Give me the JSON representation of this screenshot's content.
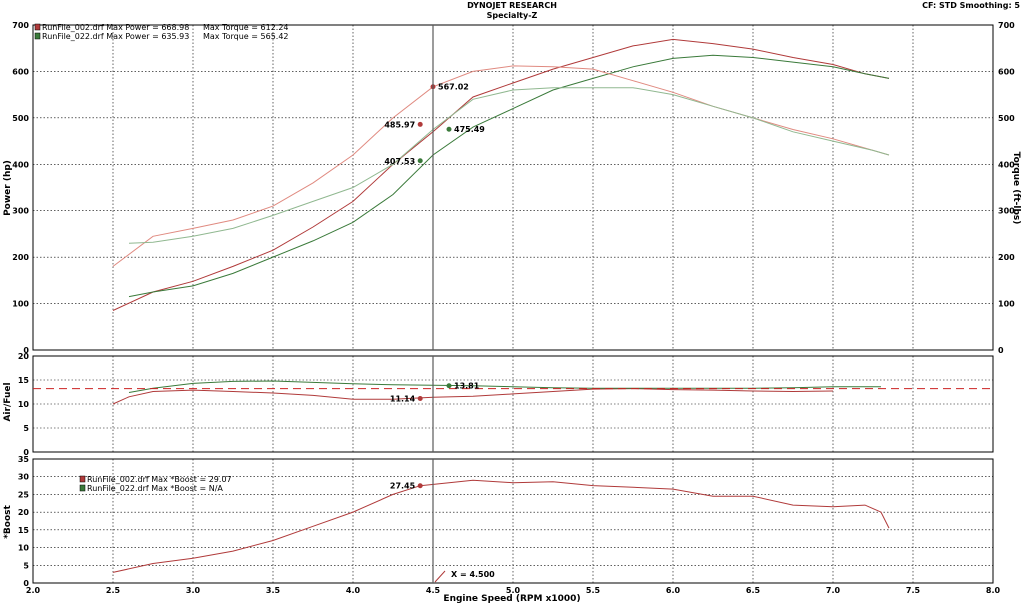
{
  "header": {
    "title": "DYNOJET RESEARCH",
    "subtitle": "Specialty-Z",
    "info": "CF: STD  Smoothing: 5"
  },
  "colors": {
    "run1": "#b03a3a",
    "run1_light": "#e08a80",
    "run2": "#3a7a3a",
    "run2_light": "#90b890",
    "marker": "#5a5a5a",
    "afr_ref": "#cc2222"
  },
  "cursor_label": "X = 4.500",
  "chart_data": [
    {
      "type": "line",
      "panel": "power-torque",
      "xlabel": "Engine Speed (RPM x1000)",
      "ylabel": "Power (hp)",
      "ylabel_right": "Torque (ft-lbs)",
      "xlim": [
        2.0,
        8.0
      ],
      "ylim": [
        0,
        700
      ],
      "xticks": [
        "2.0",
        "2.5",
        "3.0",
        "3.5",
        "4.0",
        "4.5",
        "5.0",
        "5.5",
        "6.0",
        "6.5",
        "7.0",
        "7.5",
        "8.0"
      ],
      "yticks": [
        "0",
        "100",
        "200",
        "300",
        "400",
        "500",
        "600",
        "700"
      ],
      "legend": [
        {
          "text": "RunFile_002.drf Max Power = 668.98",
          "torque": "Max Torque = 612.24"
        },
        {
          "text": "RunFile_022.drf Max Power = 635.93",
          "torque": "Max Torque = 565.42"
        }
      ],
      "series": [
        {
          "name": "RunFile_002.drf",
          "kind": "power",
          "x": [
            2.5,
            2.75,
            3.0,
            3.25,
            3.5,
            3.75,
            4.0,
            4.25,
            4.5,
            4.75,
            5.0,
            5.25,
            5.5,
            5.75,
            6.0,
            6.25,
            6.5,
            6.75,
            7.0,
            7.2,
            7.35
          ],
          "y": [
            85,
            125,
            148,
            180,
            215,
            265,
            320,
            400,
            470,
            545,
            575,
            605,
            630,
            655,
            669,
            660,
            648,
            630,
            615,
            595,
            585
          ]
        },
        {
          "name": "RunFile_022.drf",
          "kind": "power",
          "x": [
            2.6,
            2.75,
            3.0,
            3.25,
            3.5,
            3.75,
            4.0,
            4.25,
            4.5,
            4.75,
            5.0,
            5.25,
            5.5,
            5.75,
            6.0,
            6.25,
            6.5,
            6.75,
            7.0,
            7.2,
            7.35
          ],
          "y": [
            115,
            125,
            138,
            165,
            200,
            235,
            275,
            335,
            420,
            480,
            520,
            560,
            585,
            610,
            628,
            635,
            630,
            620,
            610,
            595,
            585
          ]
        },
        {
          "name": "RunFile_002.drf",
          "kind": "torque",
          "x": [
            2.5,
            2.75,
            3.0,
            3.25,
            3.5,
            3.75,
            4.0,
            4.25,
            4.5,
            4.75,
            5.0,
            5.25,
            5.5,
            5.75,
            6.0,
            6.25,
            6.5,
            6.75,
            7.0,
            7.25,
            7.35
          ],
          "y": [
            180,
            245,
            262,
            280,
            310,
            360,
            420,
            500,
            567,
            600,
            612,
            610,
            605,
            580,
            555,
            525,
            500,
            475,
            455,
            430,
            420
          ]
        },
        {
          "name": "RunFile_022.drf",
          "kind": "torque",
          "x": [
            2.6,
            2.75,
            3.0,
            3.25,
            3.5,
            3.75,
            4.0,
            4.25,
            4.5,
            4.75,
            5.0,
            5.25,
            5.5,
            5.75,
            6.0,
            6.25,
            6.5,
            6.75,
            7.0,
            7.25,
            7.35
          ],
          "y": [
            230,
            232,
            245,
            262,
            290,
            320,
            350,
            400,
            475,
            540,
            560,
            565,
            565,
            565,
            550,
            525,
            500,
            470,
            450,
            430,
            420
          ]
        }
      ],
      "markers": [
        {
          "x": 4.5,
          "y": 567.02,
          "label": "567.02",
          "series": 0
        },
        {
          "x": 4.42,
          "y": 485.97,
          "label": "485.97",
          "series": 0
        },
        {
          "x": 4.6,
          "y": 475.49,
          "label": "475.49",
          "series": 1
        },
        {
          "x": 4.42,
          "y": 407.53,
          "label": "407.53",
          "series": 1
        }
      ]
    },
    {
      "type": "line",
      "panel": "air-fuel",
      "ylabel": "Air/Fuel",
      "xlim": [
        2.0,
        8.0
      ],
      "ylim": [
        0,
        20
      ],
      "yticks": [
        "0",
        "5",
        "10",
        "15",
        "20"
      ],
      "reference_line": 13.2,
      "series": [
        {
          "name": "RunFile_002.drf",
          "x": [
            2.5,
            2.6,
            2.75,
            3.0,
            3.25,
            3.5,
            3.75,
            4.0,
            4.25,
            4.5,
            4.75,
            5.0,
            5.25,
            5.5,
            5.75,
            6.0,
            6.25,
            6.5,
            6.75,
            7.0
          ],
          "y": [
            10.0,
            11.5,
            12.6,
            12.9,
            12.6,
            12.3,
            11.8,
            11.0,
            11.0,
            11.4,
            11.6,
            12.1,
            12.6,
            13.1,
            13.2,
            13.0,
            12.9,
            12.7,
            12.6,
            12.7
          ]
        },
        {
          "name": "RunFile_022.drf",
          "x": [
            2.6,
            2.75,
            3.0,
            3.25,
            3.5,
            3.75,
            4.0,
            4.25,
            4.5,
            4.75,
            5.0,
            5.25,
            5.5,
            5.75,
            6.0,
            6.25,
            6.5,
            6.75,
            7.0,
            7.3
          ],
          "y": [
            12.4,
            13.3,
            14.3,
            14.7,
            14.8,
            14.5,
            14.2,
            14.0,
            13.9,
            13.8,
            13.6,
            13.4,
            13.3,
            13.3,
            13.3,
            13.3,
            13.3,
            13.4,
            13.6,
            13.6
          ]
        }
      ],
      "markers": [
        {
          "x": 4.6,
          "y": 13.81,
          "label": "13.81",
          "series": 1
        },
        {
          "x": 4.42,
          "y": 11.14,
          "label": "11.14",
          "series": 0
        }
      ]
    },
    {
      "type": "line",
      "panel": "boost",
      "ylabel": "*Boost",
      "xlim": [
        2.0,
        8.0
      ],
      "ylim": [
        0,
        35
      ],
      "yticks": [
        "0",
        "5",
        "10",
        "15",
        "20",
        "25",
        "30",
        "35"
      ],
      "legend": [
        {
          "text": "RunFile_002.drf Max *Boost = 29.07"
        },
        {
          "text": "RunFile_022.drf Max *Boost = N/A"
        }
      ],
      "series": [
        {
          "name": "RunFile_002.drf",
          "x": [
            2.5,
            2.75,
            3.0,
            3.25,
            3.5,
            3.75,
            4.0,
            4.25,
            4.42,
            4.75,
            5.0,
            5.25,
            5.5,
            5.75,
            6.0,
            6.25,
            6.5,
            6.75,
            7.0,
            7.2,
            7.3,
            7.35
          ],
          "y": [
            3,
            5.5,
            7,
            9,
            12,
            16,
            20,
            25,
            27.45,
            29,
            28.3,
            28.6,
            27.5,
            27,
            26.5,
            24.5,
            24.5,
            22,
            21.5,
            22,
            20,
            15.5
          ]
        }
      ],
      "markers": [
        {
          "x": 4.42,
          "y": 27.45,
          "label": "27.45",
          "series": 0
        }
      ]
    }
  ]
}
